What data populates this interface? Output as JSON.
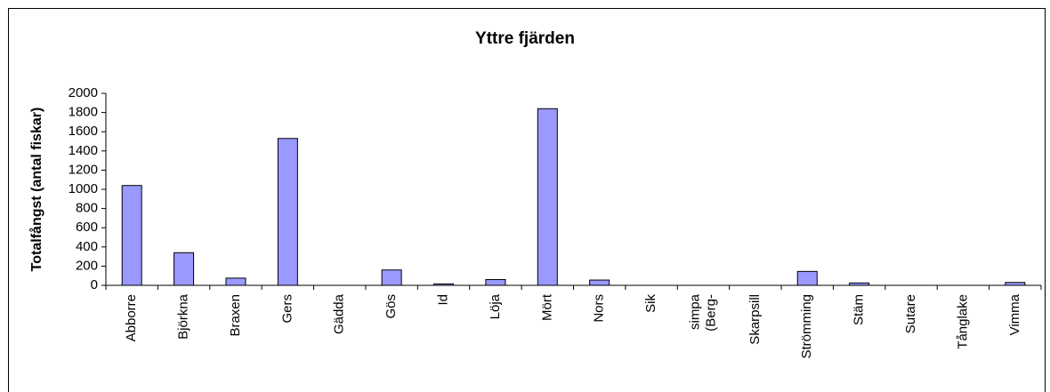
{
  "chart_data": {
    "type": "bar",
    "title": "Yttre fjärden",
    "y_label": "Totalfångst (antal fiskar)",
    "categories": [
      "Abborre",
      "Björkna",
      "Braxen",
      "Gers",
      "Gädda",
      "Gös",
      "Id",
      "Löja",
      "Mört",
      "Nors",
      "Sik",
      "simpa (Berg-",
      "Skarpsill",
      "Strömming",
      "Stäm",
      "Sutare",
      "Tånglake",
      "Vimma"
    ],
    "values": [
      1040,
      340,
      75,
      1530,
      0,
      160,
      15,
      60,
      1840,
      55,
      0,
      0,
      0,
      145,
      25,
      0,
      0,
      30
    ],
    "color": "#9999ff",
    "ylim": [
      0,
      2000
    ],
    "yticks": [
      0,
      200,
      400,
      600,
      800,
      1000,
      1200,
      1400,
      1600,
      1800,
      2000
    ],
    "grid": false
  }
}
